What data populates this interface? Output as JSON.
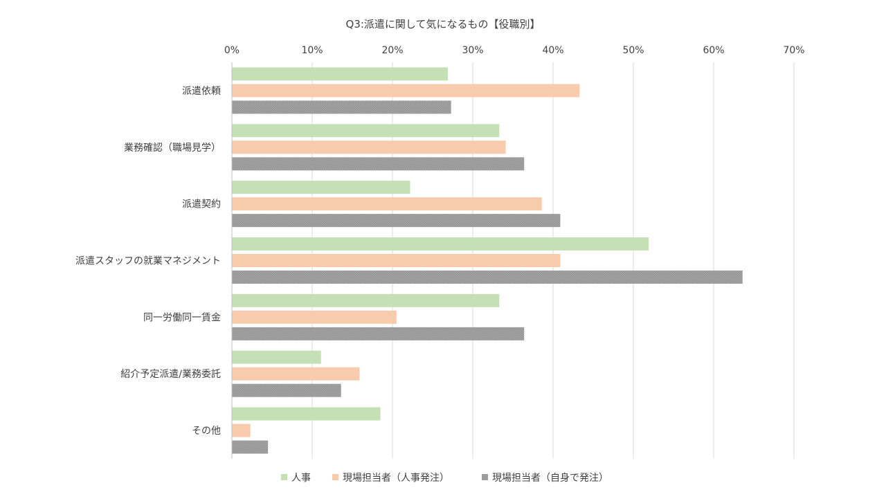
{
  "chart_data": {
    "type": "bar",
    "orientation": "horizontal",
    "title": "Q3:派遣に関して気になるもの【役職別】",
    "categories": [
      "派遣依頼",
      "業務確認（職場見学）",
      "派遣契約",
      "派遣スタッフの就業マネジメント",
      "同一労働同一賃金",
      "紹介予定派遣/業務委託",
      "その他"
    ],
    "series": [
      {
        "name": "人事",
        "color": "#c5e0b4",
        "values": [
          26.9,
          33.3,
          22.2,
          51.9,
          33.3,
          11.1,
          18.5
        ]
      },
      {
        "name": "現場担当者（人事発注）",
        "color": "#f8cbad",
        "values": [
          43.3,
          34.1,
          38.6,
          40.9,
          20.5,
          15.9,
          2.3
        ]
      },
      {
        "name": "現場担当者（自身で発注）",
        "color": "#a6a6a6",
        "pattern": "hatched",
        "values": [
          27.3,
          36.4,
          40.9,
          63.6,
          36.4,
          13.6,
          4.5
        ]
      }
    ],
    "xlim": [
      0,
      70
    ],
    "xticks": [
      "0%",
      "10%",
      "20%",
      "30%",
      "40%",
      "50%",
      "60%",
      "70%"
    ],
    "tick_values": [
      0,
      10,
      20,
      30,
      40,
      50,
      60,
      70
    ],
    "xaxis_position": "top",
    "grid": true,
    "legend_position": "bottom"
  }
}
